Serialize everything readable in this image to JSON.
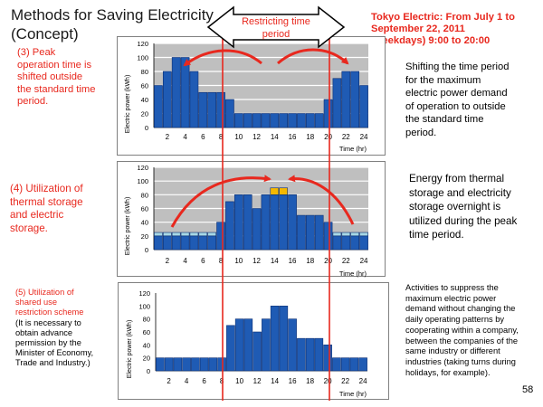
{
  "slide": {
    "title_line1": "Methods for Saving Electricity",
    "title_line2": "(Concept)",
    "restricting_label_line1": "Restricting time",
    "restricting_label_line2": "period",
    "tokyo_line1": "Tokyo Electric: From July 1 to",
    "tokyo_line2": "September 22, 2011",
    "tokyo_line3": "(weekdays) 9:00 to 20:00",
    "page_number": "58"
  },
  "methods": [
    {
      "red_lines": [
        "(3) Peak",
        "operation time is",
        "shifted outside",
        "the standard time",
        "period."
      ],
      "black_lines": [],
      "desc_lines": [
        "Shifting the time period",
        "for the maximum",
        "electric power demand",
        "of operation to outside",
        "the standard time",
        "period."
      ]
    },
    {
      "red_lines": [
        "(4) Utilization of",
        "thermal storage",
        "and electric",
        "storage."
      ],
      "black_lines": [],
      "desc_lines": [
        "Energy from thermal",
        "storage and electricity",
        "storage overnight is",
        "utilized during the peak",
        "time period."
      ]
    },
    {
      "red_lines": [
        "(5) Utilization of",
        "shared use",
        "restriction scheme"
      ],
      "black_lines": [
        "(It is necessary to",
        "obtain advance",
        "permission by the",
        "Minister of Economy,",
        "Trade and Industry.)"
      ],
      "desc_lines": [
        "Activities to suppress the",
        "maximum electric power",
        "demand without changing the",
        "daily operating patterns by",
        "cooperating within a company,",
        "between the companies of the",
        "same industry or different",
        "industries (taking turns during",
        "holidays, for example)."
      ]
    }
  ],
  "colors": {
    "bar": "#1f5bb4",
    "bar_edge": "#0b2e73",
    "storage": "#a7d8e6",
    "peak": "#f5b800",
    "grey_band": "#bfbfbf",
    "red": "#e8281e"
  },
  "chart_data": [
    {
      "type": "bar",
      "ylabel": "Electric power (kWh)",
      "xlabel": "Time (hr)",
      "ylim": [
        0,
        120
      ],
      "yticks": [
        0,
        20,
        40,
        60,
        80,
        100,
        120
      ],
      "xtick_labels": [
        "2",
        "4",
        "6",
        "8",
        "10",
        "12",
        "14",
        "16",
        "18",
        "20",
        "22",
        "24"
      ],
      "grid": true,
      "categories": [
        "1",
        "2",
        "3",
        "4",
        "5",
        "6",
        "7",
        "8",
        "9",
        "10",
        "11",
        "12",
        "13",
        "14",
        "15",
        "16",
        "17",
        "18",
        "19",
        "20",
        "21",
        "22",
        "23",
        "24"
      ],
      "values": [
        60,
        80,
        100,
        100,
        80,
        50,
        50,
        50,
        40,
        20,
        20,
        20,
        20,
        20,
        20,
        20,
        20,
        20,
        20,
        40,
        70,
        80,
        80,
        60
      ]
    },
    {
      "type": "bar",
      "ylabel": "Electric power (kWh)",
      "xlabel": "Time (hr)",
      "ylim": [
        0,
        120
      ],
      "yticks": [
        0,
        20,
        40,
        60,
        80,
        100,
        120
      ],
      "xtick_labels": [
        "2",
        "4",
        "6",
        "8",
        "10",
        "12",
        "14",
        "16",
        "18",
        "20",
        "22",
        "24"
      ],
      "grid": true,
      "categories": [
        "1",
        "2",
        "3",
        "4",
        "5",
        "6",
        "7",
        "8",
        "9",
        "10",
        "11",
        "12",
        "13",
        "14",
        "15",
        "16",
        "17",
        "18",
        "19",
        "20",
        "21",
        "22",
        "23",
        "24"
      ],
      "series": [
        {
          "values": [
            20,
            20,
            20,
            20,
            20,
            20,
            20,
            40,
            70,
            80,
            80,
            60,
            80,
            80,
            80,
            80,
            50,
            50,
            50,
            40,
            20,
            20,
            20,
            20
          ]
        },
        {
          "values": [
            5,
            5,
            5,
            5,
            5,
            5,
            5,
            0,
            0,
            0,
            0,
            0,
            0,
            0,
            0,
            0,
            0,
            0,
            0,
            0,
            5,
            5,
            5,
            5
          ]
        },
        {
          "values": [
            0,
            0,
            0,
            0,
            0,
            0,
            0,
            0,
            0,
            0,
            0,
            0,
            0,
            10,
            10,
            0,
            0,
            0,
            0,
            0,
            0,
            0,
            0,
            0
          ]
        }
      ]
    },
    {
      "type": "bar",
      "ylabel": "Electric power (kWh)",
      "xlabel": "Time (hr)",
      "ylim": [
        0,
        120
      ],
      "yticks": [
        0,
        20,
        40,
        60,
        80,
        100,
        120
      ],
      "xtick_labels": [
        "2",
        "4",
        "6",
        "8",
        "10",
        "12",
        "14",
        "16",
        "18",
        "20",
        "22",
        "24"
      ],
      "grid": false,
      "categories": [
        "1",
        "2",
        "3",
        "4",
        "5",
        "6",
        "7",
        "8",
        "9",
        "10",
        "11",
        "12",
        "13",
        "14",
        "15",
        "16",
        "17",
        "18",
        "19",
        "20",
        "21",
        "22",
        "23",
        "24"
      ],
      "values": [
        20,
        20,
        20,
        20,
        20,
        20,
        20,
        20,
        70,
        80,
        80,
        60,
        80,
        100,
        100,
        80,
        50,
        50,
        50,
        40,
        20,
        20,
        20,
        20
      ]
    }
  ]
}
